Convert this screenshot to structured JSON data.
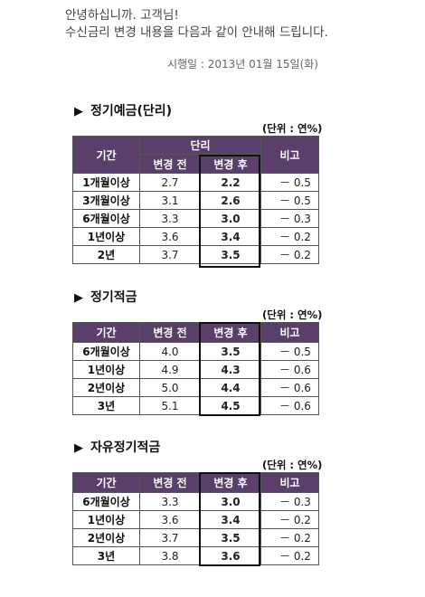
{
  "greeting": {
    "line1": "안녕하십니까. 고객님!",
    "line2": "수신금리 변경 내용을 다음과 같이 안내해 드립니다."
  },
  "effective_date": "시행일 : 2013년 01월 15일(화)",
  "sections": [
    {
      "title": "정기예금(단리)",
      "unit": "(단위 : 연%)",
      "headers": {
        "period": "기간",
        "group": "단리",
        "before": "변경 전",
        "after": "변경 후",
        "note": "비고"
      },
      "rows": [
        {
          "period": "1개월이상",
          "before": "2.7",
          "after": "2.2",
          "note": "－ 0.5"
        },
        {
          "period": "3개월이상",
          "before": "3.1",
          "after": "2.6",
          "note": "－ 0.5"
        },
        {
          "period": "6개월이상",
          "before": "3.3",
          "after": "3.0",
          "note": "－ 0.3"
        },
        {
          "period": "1년이상",
          "before": "3.6",
          "after": "3.4",
          "note": "－ 0.2"
        },
        {
          "period": "2년",
          "before": "3.7",
          "after": "3.5",
          "note": "－ 0.2"
        }
      ]
    },
    {
      "title": "정기적금",
      "unit": "(단위 : 연%)",
      "headers": {
        "period": "기간",
        "before": "변경 전",
        "after": "변경 후",
        "note": "비고"
      },
      "rows": [
        {
          "period": "6개월이상",
          "before": "4.0",
          "after": "3.5",
          "note": "－ 0.5"
        },
        {
          "period": "1년이상",
          "before": "4.9",
          "after": "4.3",
          "note": "－ 0.6"
        },
        {
          "period": "2년이상",
          "before": "5.0",
          "after": "4.4",
          "note": "－ 0.6"
        },
        {
          "period": "3년",
          "before": "5.1",
          "after": "4.5",
          "note": "－ 0.6"
        }
      ]
    },
    {
      "title": "자유정기적금",
      "unit": "(단위 : 연%)",
      "headers": {
        "period": "기간",
        "before": "변경 전",
        "after": "변경 후",
        "note": "비고"
      },
      "rows": [
        {
          "period": "6개월이상",
          "before": "3.3",
          "after": "3.0",
          "note": "－ 0.3"
        },
        {
          "period": "1년이상",
          "before": "3.6",
          "after": "3.4",
          "note": "－ 0.2"
        },
        {
          "period": "2년이상",
          "before": "3.7",
          "after": "3.5",
          "note": "－ 0.2"
        },
        {
          "period": "3년",
          "before": "3.8",
          "after": "3.6",
          "note": "－ 0.2"
        }
      ]
    }
  ]
}
